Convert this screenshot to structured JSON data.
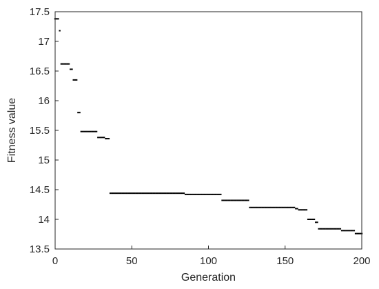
{
  "chart_data": {
    "type": "scatter",
    "title": "",
    "xlabel": "Generation",
    "ylabel": "Fitness value",
    "xlim": [
      0,
      200
    ],
    "ylim": [
      13.5,
      17.5
    ],
    "xticks": [
      0,
      50,
      100,
      150,
      200
    ],
    "xtick_labels": [
      "0",
      "50",
      "100",
      "150",
      "200"
    ],
    "yticks": [
      13.5,
      14,
      14.5,
      15,
      15.5,
      16,
      16.5,
      17,
      17.5
    ],
    "ytick_labels": [
      "13.5",
      "14",
      "14.5",
      "15",
      "15.5",
      "16",
      "16.5",
      "17",
      "17.5"
    ],
    "grid": false,
    "box": true,
    "marker_color": "#000000",
    "segments": [
      {
        "x_start": 0,
        "x_end": 2,
        "y": 17.38
      },
      {
        "x_start": 3,
        "x_end": 3,
        "y": 17.18
      },
      {
        "x_start": 4,
        "x_end": 9,
        "y": 16.62
      },
      {
        "x_start": 10,
        "x_end": 11,
        "y": 16.53
      },
      {
        "x_start": 12,
        "x_end": 14,
        "y": 16.35
      },
      {
        "x_start": 15,
        "x_end": 16,
        "y": 15.8
      },
      {
        "x_start": 17,
        "x_end": 27,
        "y": 15.48
      },
      {
        "x_start": 28,
        "x_end": 32,
        "y": 15.38
      },
      {
        "x_start": 33,
        "x_end": 35,
        "y": 15.36
      },
      {
        "x_start": 36,
        "x_end": 84,
        "y": 14.44
      },
      {
        "x_start": 85,
        "x_end": 108,
        "y": 14.42
      },
      {
        "x_start": 109,
        "x_end": 126,
        "y": 14.32
      },
      {
        "x_start": 127,
        "x_end": 156,
        "y": 14.2
      },
      {
        "x_start": 157,
        "x_end": 158,
        "y": 14.18
      },
      {
        "x_start": 159,
        "x_end": 164,
        "y": 14.16
      },
      {
        "x_start": 165,
        "x_end": 169,
        "y": 14.0
      },
      {
        "x_start": 170,
        "x_end": 171,
        "y": 13.95
      },
      {
        "x_start": 172,
        "x_end": 186,
        "y": 13.84
      },
      {
        "x_start": 187,
        "x_end": 195,
        "y": 13.81
      },
      {
        "x_start": 196,
        "x_end": 200,
        "y": 13.76
      }
    ]
  }
}
